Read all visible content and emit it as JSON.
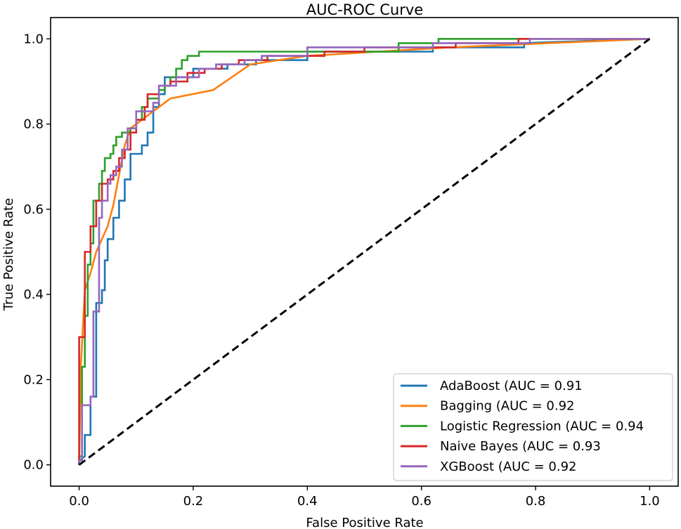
{
  "chart_data": {
    "type": "line",
    "title": "AUC-ROC Curve",
    "xlabel": "False Positive Rate",
    "ylabel": "True Positive Rate",
    "xlim": [
      -0.05,
      1.05
    ],
    "ylim": [
      -0.05,
      1.05
    ],
    "xticks": [
      0.0,
      0.2,
      0.4,
      0.6,
      0.8,
      1.0
    ],
    "yticks": [
      0.0,
      0.2,
      0.4,
      0.6,
      0.8,
      1.0
    ],
    "xtick_labels": [
      "0.0",
      "0.2",
      "0.4",
      "0.6",
      "0.8",
      "1.0"
    ],
    "ytick_labels": [
      "0.0",
      "0.2",
      "0.4",
      "0.6",
      "0.8",
      "1.0"
    ],
    "legend_position": "lower-right",
    "diagonal": {
      "points": [
        [
          0,
          0
        ],
        [
          1,
          1
        ]
      ],
      "color": "#000000",
      "style": "dashed"
    },
    "series": [
      {
        "name": "AdaBoost (AUC = 0.91",
        "color": "#1f77b4",
        "step": true,
        "points": [
          [
            0,
            0
          ],
          [
            0,
            0.01
          ],
          [
            0.01,
            0.02
          ],
          [
            0.01,
            0.07
          ],
          [
            0.02,
            0.07
          ],
          [
            0.02,
            0.16
          ],
          [
            0.03,
            0.16
          ],
          [
            0.03,
            0.38
          ],
          [
            0.04,
            0.38
          ],
          [
            0.04,
            0.41
          ],
          [
            0.045,
            0.41
          ],
          [
            0.045,
            0.48
          ],
          [
            0.05,
            0.48
          ],
          [
            0.05,
            0.53
          ],
          [
            0.06,
            0.53
          ],
          [
            0.06,
            0.58
          ],
          [
            0.07,
            0.58
          ],
          [
            0.07,
            0.62
          ],
          [
            0.08,
            0.62
          ],
          [
            0.08,
            0.67
          ],
          [
            0.09,
            0.67
          ],
          [
            0.09,
            0.73
          ],
          [
            0.11,
            0.73
          ],
          [
            0.11,
            0.75
          ],
          [
            0.12,
            0.75
          ],
          [
            0.12,
            0.78
          ],
          [
            0.13,
            0.78
          ],
          [
            0.13,
            0.84
          ],
          [
            0.14,
            0.84
          ],
          [
            0.14,
            0.87
          ],
          [
            0.15,
            0.87
          ],
          [
            0.15,
            0.91
          ],
          [
            0.2,
            0.91
          ],
          [
            0.2,
            0.93
          ],
          [
            0.26,
            0.93
          ],
          [
            0.26,
            0.94
          ],
          [
            0.31,
            0.94
          ],
          [
            0.31,
            0.95
          ],
          [
            0.4,
            0.95
          ],
          [
            0.4,
            0.97
          ],
          [
            0.62,
            0.97
          ],
          [
            0.62,
            0.98
          ],
          [
            0.78,
            0.98
          ],
          [
            0.78,
            0.99
          ],
          [
            1,
            1
          ]
        ]
      },
      {
        "name": "Bagging (AUC = 0.92",
        "color": "#ff7f0e",
        "step": false,
        "points": [
          [
            0,
            0
          ],
          [
            0.003,
            0.23
          ],
          [
            0.01,
            0.41
          ],
          [
            0.02,
            0.45
          ],
          [
            0.03,
            0.5
          ],
          [
            0.05,
            0.56
          ],
          [
            0.06,
            0.61
          ],
          [
            0.08,
            0.75
          ],
          [
            0.09,
            0.79
          ],
          [
            0.16,
            0.86
          ],
          [
            0.235,
            0.88
          ],
          [
            0.3,
            0.94
          ],
          [
            0.4,
            0.96
          ],
          [
            0.65,
            0.98
          ],
          [
            1,
            1
          ]
        ]
      },
      {
        "name": "Logistic Regression (AUC = 0.94",
        "color": "#2ca02c",
        "step": true,
        "points": [
          [
            0,
            0
          ],
          [
            0,
            0.02
          ],
          [
            0.005,
            0.02
          ],
          [
            0.005,
            0.23
          ],
          [
            0.01,
            0.23
          ],
          [
            0.01,
            0.35
          ],
          [
            0.015,
            0.35
          ],
          [
            0.015,
            0.47
          ],
          [
            0.02,
            0.47
          ],
          [
            0.02,
            0.52
          ],
          [
            0.025,
            0.52
          ],
          [
            0.025,
            0.62
          ],
          [
            0.035,
            0.62
          ],
          [
            0.035,
            0.66
          ],
          [
            0.04,
            0.66
          ],
          [
            0.04,
            0.69
          ],
          [
            0.045,
            0.69
          ],
          [
            0.045,
            0.72
          ],
          [
            0.055,
            0.72
          ],
          [
            0.055,
            0.73
          ],
          [
            0.06,
            0.73
          ],
          [
            0.06,
            0.75
          ],
          [
            0.065,
            0.75
          ],
          [
            0.065,
            0.77
          ],
          [
            0.075,
            0.77
          ],
          [
            0.075,
            0.78
          ],
          [
            0.09,
            0.78
          ],
          [
            0.09,
            0.79
          ],
          [
            0.1,
            0.79
          ],
          [
            0.1,
            0.81
          ],
          [
            0.11,
            0.81
          ],
          [
            0.11,
            0.84
          ],
          [
            0.12,
            0.84
          ],
          [
            0.12,
            0.86
          ],
          [
            0.14,
            0.86
          ],
          [
            0.14,
            0.88
          ],
          [
            0.15,
            0.88
          ],
          [
            0.15,
            0.89
          ],
          [
            0.16,
            0.89
          ],
          [
            0.16,
            0.91
          ],
          [
            0.17,
            0.91
          ],
          [
            0.17,
            0.93
          ],
          [
            0.18,
            0.93
          ],
          [
            0.18,
            0.95
          ],
          [
            0.19,
            0.95
          ],
          [
            0.19,
            0.96
          ],
          [
            0.21,
            0.96
          ],
          [
            0.21,
            0.97
          ],
          [
            0.56,
            0.97
          ],
          [
            0.56,
            0.99
          ],
          [
            0.63,
            0.99
          ],
          [
            0.63,
            1.0
          ],
          [
            1,
            1
          ]
        ]
      },
      {
        "name": "Naive Bayes (AUC = 0.93",
        "color": "#d62728",
        "step": true,
        "points": [
          [
            0,
            0
          ],
          [
            0,
            0.3
          ],
          [
            0.01,
            0.3
          ],
          [
            0.01,
            0.5
          ],
          [
            0.02,
            0.5
          ],
          [
            0.02,
            0.56
          ],
          [
            0.03,
            0.56
          ],
          [
            0.03,
            0.62
          ],
          [
            0.04,
            0.62
          ],
          [
            0.04,
            0.66
          ],
          [
            0.05,
            0.66
          ],
          [
            0.05,
            0.67
          ],
          [
            0.06,
            0.67
          ],
          [
            0.06,
            0.69
          ],
          [
            0.07,
            0.69
          ],
          [
            0.07,
            0.72
          ],
          [
            0.08,
            0.72
          ],
          [
            0.08,
            0.74
          ],
          [
            0.09,
            0.74
          ],
          [
            0.09,
            0.78
          ],
          [
            0.1,
            0.78
          ],
          [
            0.1,
            0.81
          ],
          [
            0.115,
            0.81
          ],
          [
            0.115,
            0.84
          ],
          [
            0.12,
            0.84
          ],
          [
            0.12,
            0.87
          ],
          [
            0.14,
            0.87
          ],
          [
            0.14,
            0.89
          ],
          [
            0.16,
            0.89
          ],
          [
            0.16,
            0.9
          ],
          [
            0.19,
            0.9
          ],
          [
            0.19,
            0.92
          ],
          [
            0.22,
            0.92
          ],
          [
            0.22,
            0.93
          ],
          [
            0.25,
            0.93
          ],
          [
            0.25,
            0.94
          ],
          [
            0.28,
            0.94
          ],
          [
            0.28,
            0.95
          ],
          [
            0.33,
            0.95
          ],
          [
            0.33,
            0.96
          ],
          [
            0.43,
            0.96
          ],
          [
            0.43,
            0.97
          ],
          [
            0.5,
            0.97
          ],
          [
            0.5,
            0.98
          ],
          [
            0.66,
            0.98
          ],
          [
            0.66,
            0.99
          ],
          [
            0.77,
            0.99
          ],
          [
            0.77,
            1.0
          ],
          [
            1,
            1
          ]
        ]
      },
      {
        "name": "XGBoost (AUC = 0.92",
        "color": "#9467bd",
        "step": true,
        "points": [
          [
            0,
            0
          ],
          [
            0,
            0.01
          ],
          [
            0.005,
            0.01
          ],
          [
            0.005,
            0.14
          ],
          [
            0.02,
            0.14
          ],
          [
            0.02,
            0.16
          ],
          [
            0.025,
            0.16
          ],
          [
            0.025,
            0.36
          ],
          [
            0.035,
            0.36
          ],
          [
            0.035,
            0.58
          ],
          [
            0.04,
            0.58
          ],
          [
            0.04,
            0.62
          ],
          [
            0.05,
            0.62
          ],
          [
            0.05,
            0.66
          ],
          [
            0.055,
            0.66
          ],
          [
            0.055,
            0.68
          ],
          [
            0.065,
            0.68
          ],
          [
            0.065,
            0.7
          ],
          [
            0.075,
            0.7
          ],
          [
            0.075,
            0.74
          ],
          [
            0.085,
            0.74
          ],
          [
            0.085,
            0.79
          ],
          [
            0.1,
            0.79
          ],
          [
            0.1,
            0.83
          ],
          [
            0.13,
            0.83
          ],
          [
            0.13,
            0.85
          ],
          [
            0.14,
            0.85
          ],
          [
            0.14,
            0.89
          ],
          [
            0.17,
            0.89
          ],
          [
            0.17,
            0.91
          ],
          [
            0.21,
            0.91
          ],
          [
            0.21,
            0.93
          ],
          [
            0.24,
            0.93
          ],
          [
            0.24,
            0.94
          ],
          [
            0.29,
            0.94
          ],
          [
            0.29,
            0.95
          ],
          [
            0.32,
            0.95
          ],
          [
            0.32,
            0.96
          ],
          [
            0.4,
            0.96
          ],
          [
            0.4,
            0.98
          ],
          [
            0.62,
            0.98
          ],
          [
            0.62,
            0.99
          ],
          [
            0.79,
            0.99
          ],
          [
            0.79,
            1.0
          ],
          [
            1,
            1
          ]
        ]
      }
    ]
  }
}
